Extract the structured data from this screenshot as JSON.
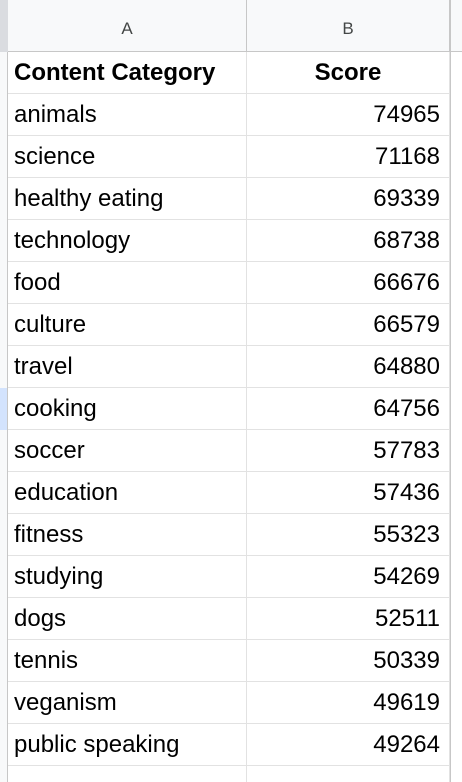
{
  "columns": {
    "a": "A",
    "b": "B"
  },
  "table": {
    "headers": [
      "Content Category",
      "Score"
    ],
    "rows": [
      [
        "animals",
        "74965"
      ],
      [
        "science",
        "71168"
      ],
      [
        "healthy eating",
        "69339"
      ],
      [
        "technology",
        "68738"
      ],
      [
        "food",
        "66676"
      ],
      [
        "culture",
        "66579"
      ],
      [
        "travel",
        "64880"
      ],
      [
        "cooking",
        "64756"
      ],
      [
        "soccer",
        "57783"
      ],
      [
        "education",
        "57436"
      ],
      [
        "fitness",
        "55323"
      ],
      [
        "studying",
        "54269"
      ],
      [
        "dogs",
        "52511"
      ],
      [
        "tennis",
        "50339"
      ],
      [
        "veganism",
        "49619"
      ],
      [
        "public speaking",
        "49264"
      ]
    ]
  },
  "colors": {
    "header_bg": "#f8f9fa",
    "gridline": "#e2e2e2",
    "selected_row_marker": "#d3e3fd"
  }
}
